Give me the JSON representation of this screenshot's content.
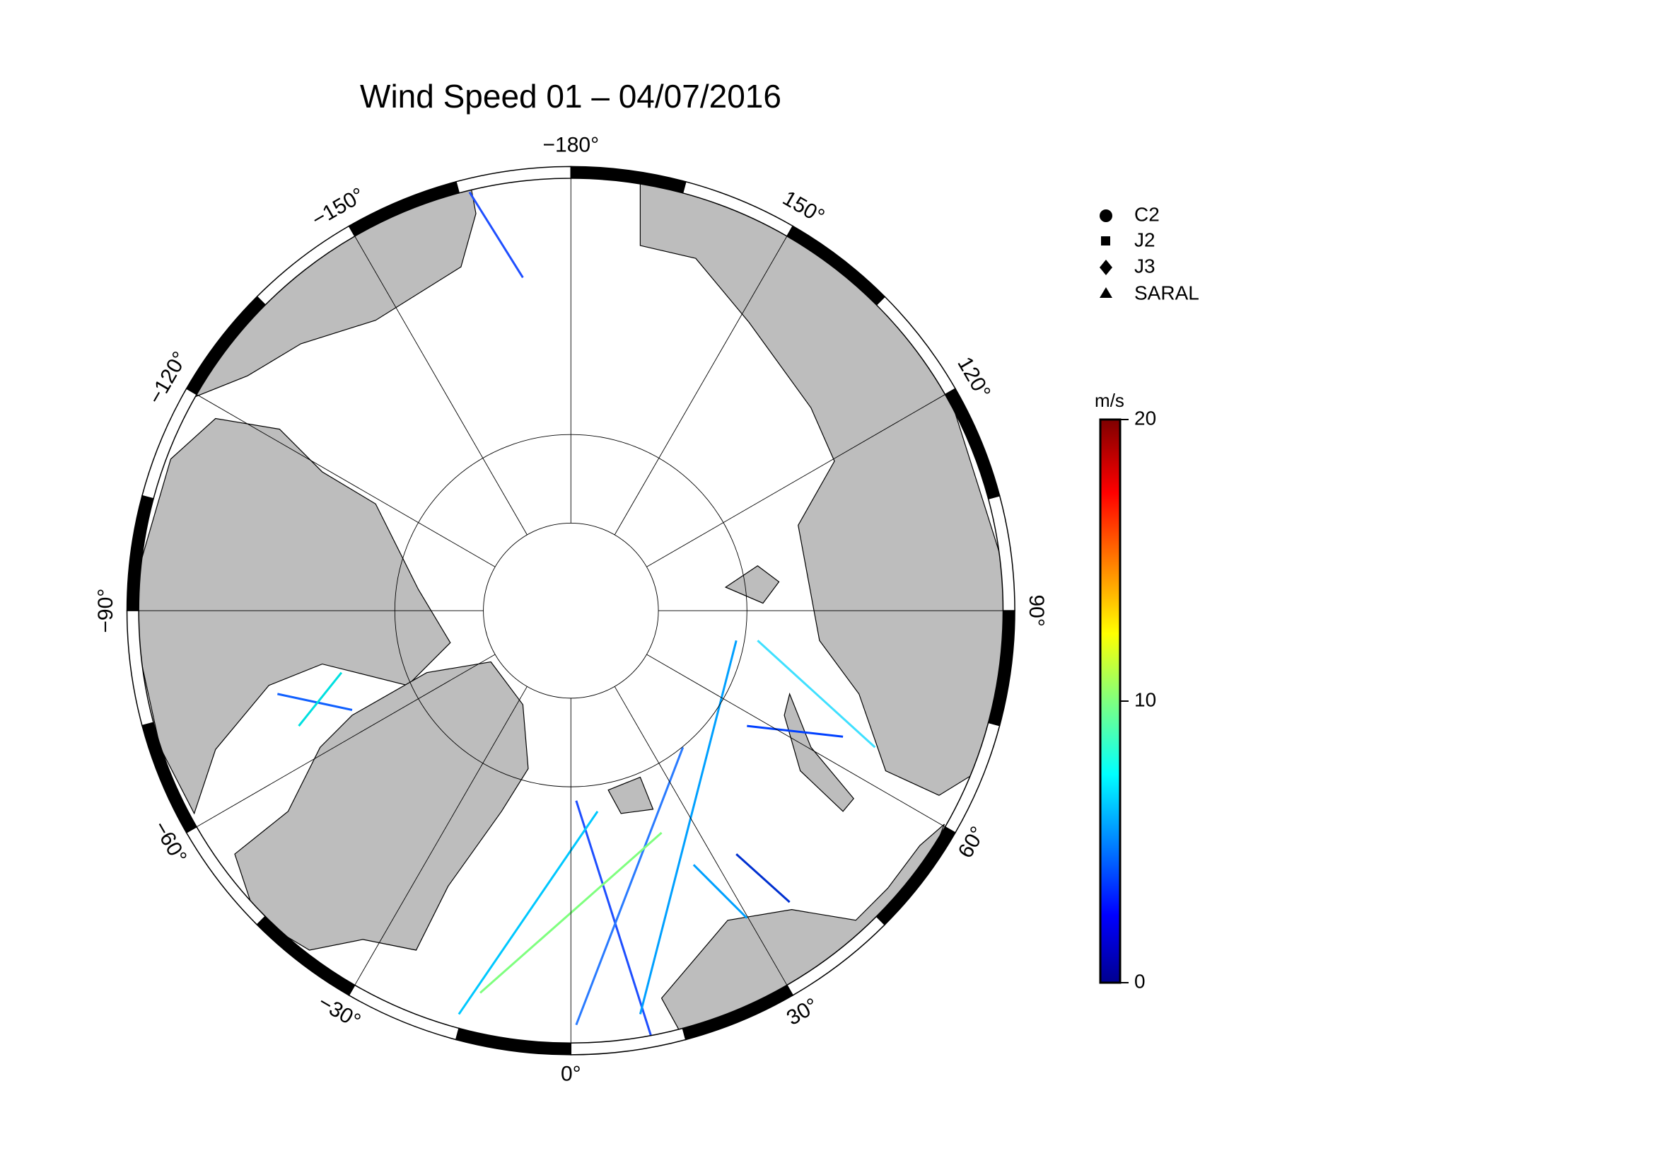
{
  "title": "Wind Speed 01 – 04/07/2016",
  "meridian_labels": [
    {
      "value": -180,
      "label": "−180°"
    },
    {
      "value": 150,
      "label": "150°"
    },
    {
      "value": 120,
      "label": "120°"
    },
    {
      "value": 90,
      "label": "90°"
    },
    {
      "value": 60,
      "label": "60°"
    },
    {
      "value": 30,
      "label": "30°"
    },
    {
      "value": 0,
      "label": "0°"
    },
    {
      "value": -30,
      "label": "−30°"
    },
    {
      "value": -60,
      "label": "−60°"
    },
    {
      "value": -90,
      "label": "−90°"
    },
    {
      "value": -120,
      "label": "−120°"
    },
    {
      "value": -150,
      "label": "−150°"
    }
  ],
  "legend": [
    "C2",
    "J2",
    "J3",
    "SARAL"
  ],
  "colorbar": {
    "unit": "m/s",
    "range": [
      0,
      20
    ],
    "ticks": [
      0,
      10,
      20
    ]
  }
}
